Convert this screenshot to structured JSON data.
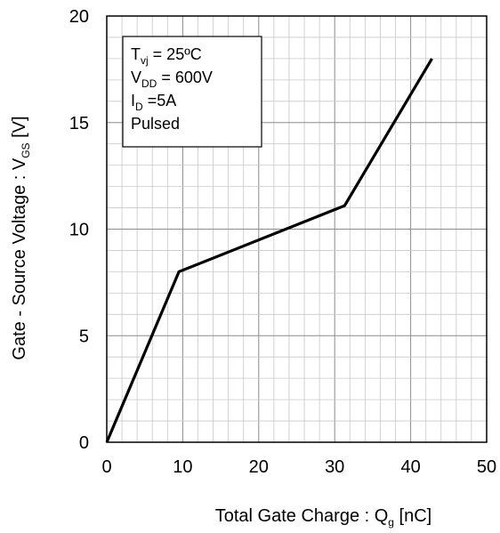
{
  "chart_data": {
    "type": "line",
    "title": "",
    "xlabel": {
      "main": "Total Gate Charge : Q",
      "sub": "g",
      "unit": " [nC]"
    },
    "ylabel": {
      "main": "Gate - Source Voltage : V",
      "sub": "GS",
      "unit": " [V]"
    },
    "xlim": [
      0,
      50
    ],
    "ylim": [
      0,
      20
    ],
    "xticks": [
      0,
      10,
      20,
      30,
      40,
      50
    ],
    "yticks": [
      0,
      5,
      10,
      15,
      20
    ],
    "x_minor_step": 2,
    "y_minor_step": 1,
    "grid": true,
    "series": [
      {
        "color": "#000000",
        "x": [
          0,
          9.5,
          31.3,
          42.8
        ],
        "y": [
          0,
          8.0,
          11.1,
          18.0
        ]
      }
    ],
    "annotation": {
      "position": "top-left",
      "lines": [
        {
          "main": "T",
          "sub": "vj",
          "rest": " = 25ºC"
        },
        {
          "main": "V",
          "sub": "DD",
          "rest": " = 600V"
        },
        {
          "main": "I",
          "sub": "D",
          "rest": " =5A"
        },
        {
          "main": "Pulsed",
          "sub": "",
          "rest": ""
        }
      ]
    }
  }
}
